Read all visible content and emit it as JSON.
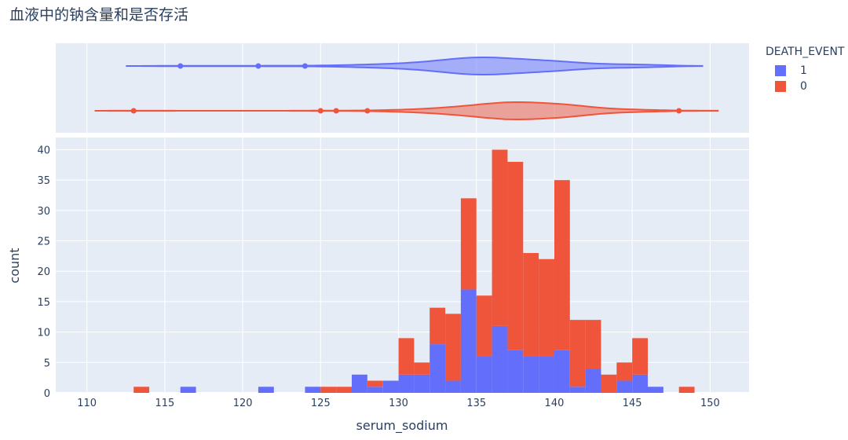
{
  "chart_data": {
    "type": "histogram",
    "title": "血液中的钠含量和是否存活",
    "xlabel": "serum_sodium",
    "ylabel": "count",
    "x_range": [
      108,
      152.5
    ],
    "y_range": [
      0,
      42
    ],
    "x_ticks": [
      110,
      115,
      120,
      125,
      130,
      135,
      140,
      145,
      150
    ],
    "y_ticks": [
      0,
      5,
      10,
      15,
      20,
      25,
      30,
      35,
      40
    ],
    "barmode": "stack",
    "bin_start": 113,
    "bin_size": 1,
    "legend": {
      "title": "DEATH_EVENT",
      "placement": "right",
      "items": [
        {
          "name": "1",
          "color": "#636efa"
        },
        {
          "name": "0",
          "color": "#ef553b"
        }
      ]
    },
    "series": [
      {
        "name": "1",
        "color": "#636efa",
        "counts": [
          0,
          0,
          0,
          1,
          0,
          0,
          0,
          0,
          1,
          0,
          0,
          1,
          0,
          0,
          3,
          1,
          2,
          3,
          3,
          8,
          2,
          17,
          6,
          11,
          7,
          6,
          6,
          7,
          1,
          4,
          0,
          2,
          3,
          1,
          0,
          0
        ]
      },
      {
        "name": "0",
        "color": "#ef553b",
        "counts": [
          1,
          0,
          0,
          0,
          0,
          0,
          0,
          0,
          0,
          0,
          0,
          0,
          1,
          1,
          0,
          1,
          0,
          6,
          2,
          6,
          11,
          15,
          10,
          29,
          31,
          17,
          16,
          28,
          11,
          8,
          3,
          3,
          6,
          0,
          0,
          1
        ]
      }
    ],
    "violin": [
      {
        "name": "1",
        "color": "#636efa",
        "range": [
          112.5,
          149.5
        ],
        "peak": 135,
        "points": [
          116,
          121,
          124
        ]
      },
      {
        "name": "0",
        "color": "#ef553b",
        "range": [
          110.5,
          150.5
        ],
        "peak": 137,
        "points": [
          113,
          125,
          126,
          128,
          148
        ]
      }
    ]
  }
}
